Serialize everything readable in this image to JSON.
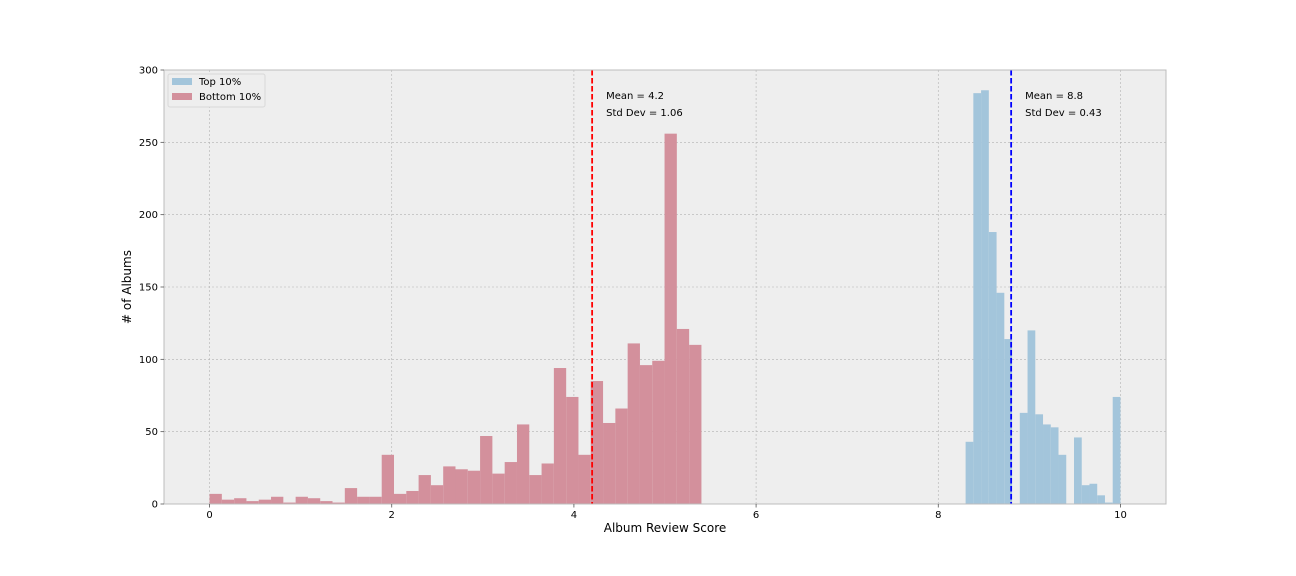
{
  "chart_data": {
    "type": "bar",
    "title": "",
    "xlabel": "Album Review Score",
    "ylabel": "# of Albums",
    "xlim": [
      -0.5,
      10.5
    ],
    "ylim": [
      0,
      300
    ],
    "xticks": [
      0,
      2,
      4,
      6,
      8,
      10
    ],
    "yticks": [
      0,
      50,
      100,
      150,
      200,
      250,
      300
    ],
    "grid": true,
    "legend_position": "top-left",
    "series": [
      {
        "name": "Top 10%",
        "color": "#a3c5db",
        "bin_width": 0.085,
        "bins": [
          {
            "x": 8.3,
            "count": 43
          },
          {
            "x": 8.385,
            "count": 284
          },
          {
            "x": 8.47,
            "count": 286
          },
          {
            "x": 8.555,
            "count": 188
          },
          {
            "x": 8.64,
            "count": 146
          },
          {
            "x": 8.725,
            "count": 114
          },
          {
            "x": 8.81,
            "count": 0
          },
          {
            "x": 8.895,
            "count": 63
          },
          {
            "x": 8.98,
            "count": 120
          },
          {
            "x": 9.065,
            "count": 62
          },
          {
            "x": 9.15,
            "count": 55
          },
          {
            "x": 9.235,
            "count": 53
          },
          {
            "x": 9.32,
            "count": 34
          },
          {
            "x": 9.405,
            "count": 0
          },
          {
            "x": 9.49,
            "count": 46
          },
          {
            "x": 9.575,
            "count": 13
          },
          {
            "x": 9.66,
            "count": 14
          },
          {
            "x": 9.745,
            "count": 6
          },
          {
            "x": 9.83,
            "count": 1
          },
          {
            "x": 9.915,
            "count": 74
          }
        ]
      },
      {
        "name": "Bottom 10%",
        "color": "#d3909c",
        "bin_width": 0.135,
        "bins": [
          {
            "x": 0.0,
            "count": 7
          },
          {
            "x": 0.135,
            "count": 3
          },
          {
            "x": 0.27,
            "count": 4
          },
          {
            "x": 0.405,
            "count": 2
          },
          {
            "x": 0.54,
            "count": 3
          },
          {
            "x": 0.675,
            "count": 5
          },
          {
            "x": 0.81,
            "count": 1
          },
          {
            "x": 0.945,
            "count": 5
          },
          {
            "x": 1.08,
            "count": 4
          },
          {
            "x": 1.215,
            "count": 2
          },
          {
            "x": 1.35,
            "count": 1
          },
          {
            "x": 1.485,
            "count": 11
          },
          {
            "x": 1.62,
            "count": 5
          },
          {
            "x": 1.755,
            "count": 5
          },
          {
            "x": 1.89,
            "count": 34
          },
          {
            "x": 2.025,
            "count": 7
          },
          {
            "x": 2.16,
            "count": 9
          },
          {
            "x": 2.295,
            "count": 20
          },
          {
            "x": 2.43,
            "count": 13
          },
          {
            "x": 2.565,
            "count": 26
          },
          {
            "x": 2.7,
            "count": 24
          },
          {
            "x": 2.835,
            "count": 23
          },
          {
            "x": 2.97,
            "count": 47
          },
          {
            "x": 3.105,
            "count": 21
          },
          {
            "x": 3.24,
            "count": 29
          },
          {
            "x": 3.375,
            "count": 55
          },
          {
            "x": 3.51,
            "count": 20
          },
          {
            "x": 3.645,
            "count": 28
          },
          {
            "x": 3.78,
            "count": 94
          },
          {
            "x": 3.915,
            "count": 74
          },
          {
            "x": 4.05,
            "count": 34
          },
          {
            "x": 4.185,
            "count": 85
          },
          {
            "x": 4.32,
            "count": 56
          },
          {
            "x": 4.455,
            "count": 66
          },
          {
            "x": 4.59,
            "count": 111
          },
          {
            "x": 4.725,
            "count": 96
          },
          {
            "x": 4.86,
            "count": 99
          },
          {
            "x": 4.995,
            "count": 256
          },
          {
            "x": 5.13,
            "count": 121
          },
          {
            "x": 5.265,
            "count": 110
          }
        ]
      }
    ],
    "reference_lines": [
      {
        "name": "bottom-mean",
        "x": 4.2,
        "color": "#ff0000",
        "label_mean": "Mean = 4.2",
        "label_std": "Std Dev = 1.06"
      },
      {
        "name": "top-mean",
        "x": 8.8,
        "color": "#0000ff",
        "label_mean": "Mean = 8.8",
        "label_std": "Std Dev = 0.43"
      }
    ]
  }
}
